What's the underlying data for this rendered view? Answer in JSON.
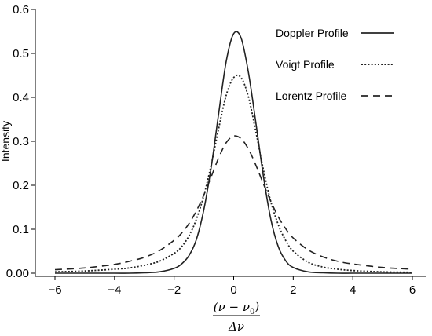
{
  "chart_data": {
    "type": "line",
    "title": "",
    "ylabel": "Intensity",
    "xlabel": {
      "numerator_main": "(ν − ν",
      "numerator_sub": "0",
      "numerator_close": ")",
      "denominator": "Δν"
    },
    "xlim": [
      -6,
      6
    ],
    "ylim": [
      0,
      0.6
    ],
    "x_ticks": [
      -6,
      -4,
      -2,
      0,
      2,
      4,
      6
    ],
    "x_tick_labels": [
      "−6",
      "−4",
      "−2",
      "0",
      "2",
      "4",
      "6"
    ],
    "y_ticks": [
      0,
      0.1,
      0.2,
      0.3,
      0.4,
      0.5,
      0.6
    ],
    "y_tick_labels": [
      "0.00",
      "0.1",
      "0.2",
      "0.3",
      "0.4",
      "0.5",
      "0.6"
    ],
    "grid": false,
    "legend_position": "top-right",
    "x": [
      -6,
      -5,
      -4,
      -3.5,
      -3,
      -2.5,
      -2,
      -1.75,
      -1.5,
      -1.25,
      -1,
      -0.75,
      -0.5,
      -0.25,
      0,
      0.25,
      0.5,
      0.75,
      1,
      1.25,
      1.5,
      1.75,
      2,
      2.5,
      3,
      3.5,
      4,
      5,
      6
    ],
    "series": [
      {
        "name": "Doppler Profile",
        "style": "solid",
        "values": [
          0,
          0,
          0,
          0,
          0.001,
          0.003,
          0.011,
          0.021,
          0.04,
          0.077,
          0.145,
          0.243,
          0.365,
          0.482,
          0.545,
          0.535,
          0.455,
          0.34,
          0.22,
          0.122,
          0.06,
          0.028,
          0.013,
          0.003,
          0.001,
          0,
          0,
          0,
          0
        ]
      },
      {
        "name": "Voigt Profile",
        "style": "dotted",
        "values": [
          0.003,
          0.005,
          0.009,
          0.012,
          0.018,
          0.027,
          0.045,
          0.06,
          0.085,
          0.123,
          0.177,
          0.248,
          0.33,
          0.405,
          0.445,
          0.445,
          0.4,
          0.32,
          0.235,
          0.162,
          0.11,
          0.074,
          0.05,
          0.025,
          0.014,
          0.009,
          0.006,
          0.003,
          0.002
        ]
      },
      {
        "name": "Lorentz Profile",
        "style": "dashed",
        "values": [
          0.008,
          0.012,
          0.02,
          0.027,
          0.036,
          0.051,
          0.075,
          0.091,
          0.113,
          0.142,
          0.178,
          0.22,
          0.263,
          0.297,
          0.312,
          0.306,
          0.282,
          0.245,
          0.203,
          0.163,
          0.128,
          0.101,
          0.08,
          0.053,
          0.037,
          0.027,
          0.021,
          0.013,
          0.009
        ]
      }
    ]
  }
}
